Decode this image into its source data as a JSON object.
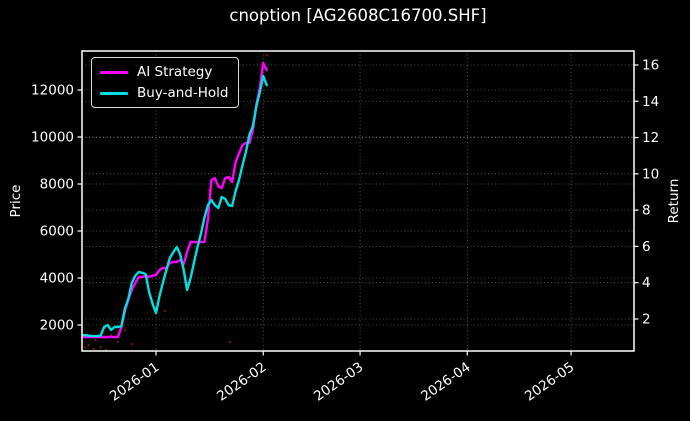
{
  "title": "cnoption [AG2608C16700.SHF]",
  "legend": [
    {
      "label": "AI Strategy",
      "color": "#ff00ff"
    },
    {
      "label": "Buy-and-Hold",
      "color": "#00e0e0"
    }
  ],
  "axes": {
    "x": {
      "tick_labels": [
        "2026-01",
        "2026-02",
        "2026-03",
        "2026-04",
        "2026-05"
      ],
      "tick_days": [
        0,
        31,
        59,
        90,
        120
      ],
      "range_days": [
        -21.4,
        138.2
      ]
    },
    "y_left": {
      "label": "Price",
      "ticks": [
        2000,
        4000,
        6000,
        8000,
        10000,
        12000
      ],
      "range": [
        894,
        13660
      ]
    },
    "y_right": {
      "label": "Return",
      "ticks": [
        2,
        4,
        6,
        8,
        10,
        12,
        14,
        16
      ],
      "range": [
        0.235,
        16.77
      ]
    }
  },
  "colors": {
    "background": "#000000",
    "text": "#ffffff",
    "spine": "#ffffff",
    "grid": "#ffffff",
    "ai_strategy": "#ff00ff",
    "buy_and_hold": "#00e0e0",
    "markers": "#8b1a1a"
  },
  "chart_data": {
    "type": "line",
    "title": "cnoption [AG2608C16700.SHF]",
    "xlabel": "",
    "ylabel_left": "Price",
    "ylabel_right": "Return",
    "x_unit": "days from 2026-01-01",
    "x_tick_labels": [
      "2026-01",
      "2026-02",
      "2026-03",
      "2026-04",
      "2026-05"
    ],
    "grid": true,
    "legend_position": "upper left",
    "series": [
      {
        "name": "AI Strategy",
        "color": "#ff00ff",
        "axis": "left",
        "points": [
          [
            -21,
            1490
          ],
          [
            -19,
            1490
          ],
          [
            -17,
            1490
          ],
          [
            -15,
            1490
          ],
          [
            -13,
            1490
          ],
          [
            -11,
            1490
          ],
          [
            -10,
            1915
          ],
          [
            -9,
            2600
          ],
          [
            -8,
            3064
          ],
          [
            -7,
            3500
          ],
          [
            -6,
            3787
          ],
          [
            -5,
            4043
          ],
          [
            -4,
            4043
          ],
          [
            -3,
            4100
          ],
          [
            -2,
            4043
          ],
          [
            -1,
            4100
          ],
          [
            0,
            4128
          ],
          [
            1,
            4340
          ],
          [
            2,
            4426
          ],
          [
            3,
            4426
          ],
          [
            4,
            4638
          ],
          [
            5,
            4680
          ],
          [
            6,
            4681
          ],
          [
            7,
            4766
          ],
          [
            8,
            4596
          ],
          [
            9,
            5106
          ],
          [
            10,
            5532
          ],
          [
            11,
            5532
          ],
          [
            12,
            5532
          ],
          [
            13,
            5532
          ],
          [
            14,
            5532
          ],
          [
            15,
            6500
          ],
          [
            16,
            8170
          ],
          [
            17,
            8255
          ],
          [
            18,
            7900
          ],
          [
            19,
            7830
          ],
          [
            20,
            8255
          ],
          [
            21,
            8298
          ],
          [
            22,
            8085
          ],
          [
            23,
            8936
          ],
          [
            24,
            9300
          ],
          [
            25,
            9660
          ],
          [
            26,
            9745
          ],
          [
            27,
            9745
          ],
          [
            28,
            10300
          ],
          [
            29,
            11362
          ],
          [
            30,
            12100
          ],
          [
            31,
            13150
          ],
          [
            32,
            12850
          ]
        ]
      },
      {
        "name": "Buy-and-Hold",
        "color": "#00e0e0",
        "axis": "left",
        "points": [
          [
            -21,
            1570
          ],
          [
            -20,
            1560
          ],
          [
            -19,
            1540
          ],
          [
            -18,
            1530
          ],
          [
            -17,
            1530
          ],
          [
            -16,
            1550
          ],
          [
            -15,
            1915
          ],
          [
            -14,
            2000
          ],
          [
            -13,
            1790
          ],
          [
            -12,
            1915
          ],
          [
            -11,
            1915
          ],
          [
            -10,
            1950
          ],
          [
            -9,
            2700
          ],
          [
            -8,
            3106
          ],
          [
            -7,
            3787
          ],
          [
            -6,
            4100
          ],
          [
            -5,
            4255
          ],
          [
            -4,
            4220
          ],
          [
            -3,
            4170
          ],
          [
            -2,
            3404
          ],
          [
            -1,
            2900
          ],
          [
            0,
            2511
          ],
          [
            1,
            3234
          ],
          [
            2,
            3800
          ],
          [
            3,
            4340
          ],
          [
            4,
            4851
          ],
          [
            5,
            5100
          ],
          [
            6,
            5319
          ],
          [
            7,
            5000
          ],
          [
            8,
            4340
          ],
          [
            9,
            3489
          ],
          [
            10,
            4000
          ],
          [
            11,
            4681
          ],
          [
            12,
            5320
          ],
          [
            13,
            5900
          ],
          [
            14,
            6553
          ],
          [
            15,
            7100
          ],
          [
            16,
            7319
          ],
          [
            17,
            7100
          ],
          [
            18,
            6979
          ],
          [
            19,
            7447
          ],
          [
            20,
            7362
          ],
          [
            21,
            7100
          ],
          [
            22,
            7064
          ],
          [
            23,
            7700
          ],
          [
            24,
            8170
          ],
          [
            25,
            8800
          ],
          [
            26,
            9362
          ],
          [
            27,
            10100
          ],
          [
            28,
            10468
          ],
          [
            29,
            11300
          ],
          [
            30,
            11900
          ],
          [
            31,
            12600
          ],
          [
            32,
            12210
          ]
        ]
      }
    ],
    "markers": {
      "name": "trade-markers",
      "color": "#8b1a1a",
      "points": [
        [
          -20.5,
          1050
        ],
        [
          -19.5,
          1150
        ],
        [
          -18,
          980
        ],
        [
          -17.5,
          1360
        ],
        [
          -16,
          1060
        ],
        [
          -15,
          1440
        ],
        [
          -14.5,
          940
        ],
        [
          -13,
          1570
        ],
        [
          -11,
          1280
        ],
        [
          -9,
          1790
        ],
        [
          -7,
          1190
        ],
        [
          -1,
          900
        ],
        [
          2.5,
          2600
        ],
        [
          15.3,
          7740
        ],
        [
          21.4,
          1280
        ],
        [
          32,
          13490
        ]
      ]
    }
  }
}
